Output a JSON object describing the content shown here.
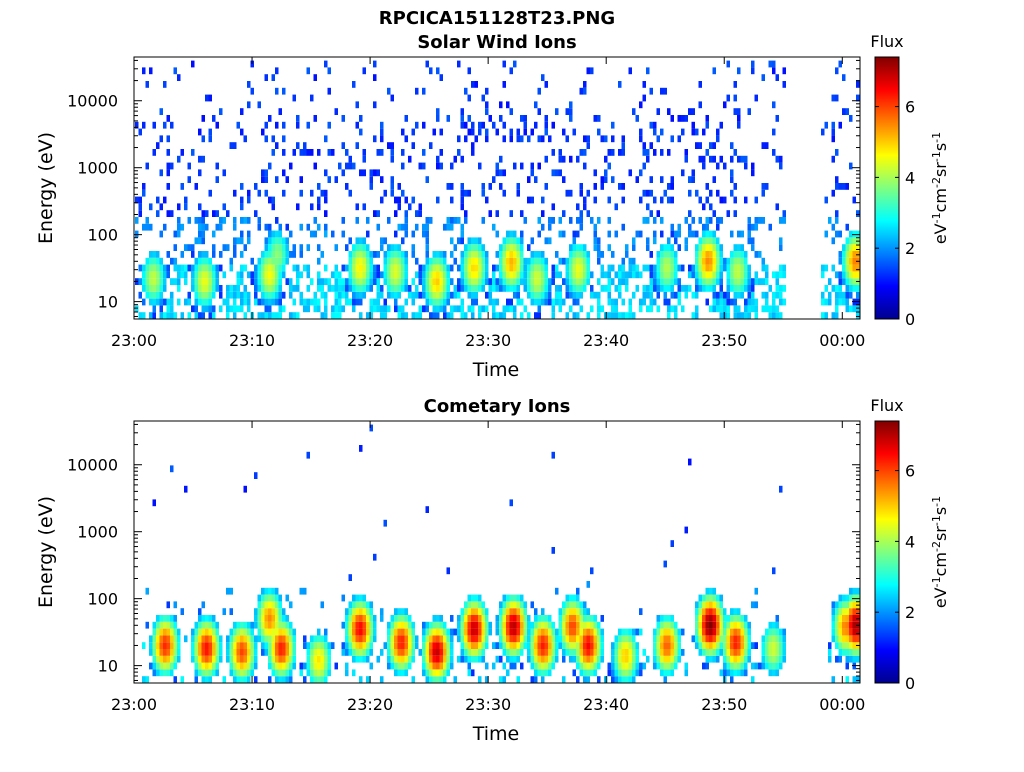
{
  "figure_title": "RPCICA151128T23.PNG",
  "colorbar": {
    "label": "Flux",
    "unit_label": "eV-1cm-2sr-1s-1",
    "range": [
      0,
      7.4
    ],
    "ticks": [
      "0",
      "2",
      "4",
      "6"
    ],
    "colormap": "jet"
  },
  "chart_data": [
    {
      "type": "heatmap",
      "title": "Solar Wind Ions",
      "xlabel": "Time",
      "ylabel": "Energy (eV)",
      "y_scale": "log",
      "ylim": [
        5.5,
        45000
      ],
      "xlim": [
        "23:00",
        "00:01:30"
      ],
      "x_ticks": [
        "23:00",
        "23:10",
        "23:20",
        "23:30",
        "23:40",
        "23:50",
        "00:00"
      ],
      "y_ticks": [
        "10",
        "100",
        "1000",
        "10000"
      ],
      "data_gap": [
        "23:55",
        "23:58"
      ],
      "hotspots": [
        {
          "time": "23:01:30",
          "energy": 22,
          "flux": 4.2
        },
        {
          "time": "23:05:50",
          "energy": 20,
          "flux": 4.5
        },
        {
          "time": "23:11:20",
          "energy": 25,
          "flux": 4.6
        },
        {
          "time": "23:12:00",
          "energy": 50,
          "flux": 3.8
        },
        {
          "time": "23:19:00",
          "energy": 32,
          "flux": 4.7
        },
        {
          "time": "23:22:00",
          "energy": 28,
          "flux": 4.4
        },
        {
          "time": "23:25:30",
          "energy": 20,
          "flux": 5.0
        },
        {
          "time": "23:28:40",
          "energy": 32,
          "flux": 4.9
        },
        {
          "time": "23:31:50",
          "energy": 38,
          "flux": 5.2
        },
        {
          "time": "23:34:00",
          "energy": 22,
          "flux": 4.3
        },
        {
          "time": "23:37:30",
          "energy": 30,
          "flux": 4.5
        },
        {
          "time": "23:45:00",
          "energy": 32,
          "flux": 4.1
        },
        {
          "time": "23:48:30",
          "energy": 40,
          "flux": 5.5
        },
        {
          "time": "23:51:00",
          "energy": 28,
          "flux": 4.2
        },
        {
          "time": "00:01:00",
          "energy": 40,
          "flux": 5.6
        }
      ]
    },
    {
      "type": "heatmap",
      "title": "Cometary Ions",
      "xlabel": "Time",
      "ylabel": "Energy (eV)",
      "y_scale": "log",
      "ylim": [
        5.5,
        45000
      ],
      "xlim": [
        "23:00",
        "00:01:30"
      ],
      "x_ticks": [
        "23:00",
        "23:10",
        "23:20",
        "23:30",
        "23:40",
        "23:50",
        "00:00"
      ],
      "y_ticks": [
        "10",
        "100",
        "1000",
        "10000"
      ],
      "data_gap": [
        "23:55",
        "23:58"
      ],
      "hotspots": [
        {
          "time": "23:02:30",
          "energy": 20,
          "flux": 6.2
        },
        {
          "time": "23:06:00",
          "energy": 18,
          "flux": 6.4
        },
        {
          "time": "23:09:00",
          "energy": 16,
          "flux": 6.0
        },
        {
          "time": "23:11:20",
          "energy": 50,
          "flux": 5.5
        },
        {
          "time": "23:12:20",
          "energy": 18,
          "flux": 6.3
        },
        {
          "time": "23:15:30",
          "energy": 12,
          "flux": 4.8
        },
        {
          "time": "23:19:00",
          "energy": 35,
          "flux": 6.5
        },
        {
          "time": "23:22:30",
          "energy": 22,
          "flux": 6.3
        },
        {
          "time": "23:25:30",
          "energy": 16,
          "flux": 6.9
        },
        {
          "time": "23:28:40",
          "energy": 35,
          "flux": 6.9
        },
        {
          "time": "23:32:00",
          "energy": 38,
          "flux": 7.0
        },
        {
          "time": "23:34:30",
          "energy": 20,
          "flux": 6.3
        },
        {
          "time": "23:37:00",
          "energy": 38,
          "flux": 6.0
        },
        {
          "time": "23:38:20",
          "energy": 20,
          "flux": 6.5
        },
        {
          "time": "23:41:30",
          "energy": 14,
          "flux": 5.0
        },
        {
          "time": "23:45:00",
          "energy": 20,
          "flux": 5.8
        },
        {
          "time": "23:48:40",
          "energy": 40,
          "flux": 7.4
        },
        {
          "time": "23:50:50",
          "energy": 22,
          "flux": 6.3
        },
        {
          "time": "23:54:00",
          "energy": 18,
          "flux": 4.3
        },
        {
          "time": "00:00:10",
          "energy": 38,
          "flux": 5.6
        },
        {
          "time": "00:01:00",
          "energy": 40,
          "flux": 7.2
        }
      ]
    }
  ]
}
